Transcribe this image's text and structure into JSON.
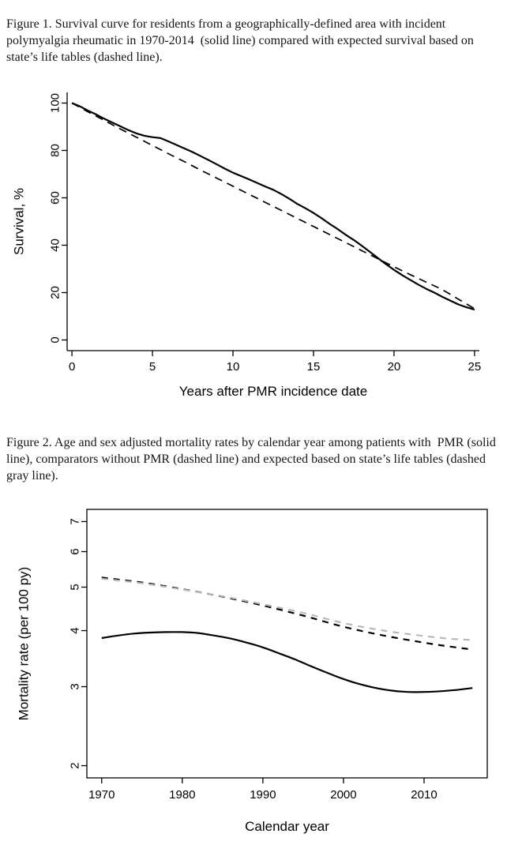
{
  "captions": {
    "figure1": "Figure 1. Survival curve for residents from a geographically-defined area with incident polymyalgia rheumatic in 1970-2014  (solid line) compared with expected survival based on state’s life tables (dashed line).",
    "figure2": "Figure 2. Age and sex adjusted mortality rates by calendar year among patients with  PMR (solid line), comparators without PMR (dashed line) and expected based on state’s life tables (dashed gray line)."
  },
  "chart_data": [
    {
      "id": "survival-curve",
      "type": "line",
      "title": "",
      "xlabel": "Years after PMR incidence date",
      "ylabel": "Survival, %",
      "xlim": [
        0,
        25
      ],
      "ylim": [
        0,
        100
      ],
      "xticks": [
        0,
        5,
        10,
        15,
        20,
        25
      ],
      "yticks": [
        0,
        20,
        40,
        60,
        80,
        100
      ],
      "yscale": "linear",
      "box": "l",
      "grid": false,
      "legend": "described-in-caption",
      "series": [
        {
          "name": "observed-pmr-cohort-solid",
          "style": "solid",
          "color": "#000000",
          "width": 2.2,
          "smooth": false,
          "points": [
            [
              0,
              100
            ],
            [
              0.5,
              98.6
            ],
            [
              1,
              96.8
            ],
            [
              1.5,
              95.2
            ],
            [
              2,
              93.4
            ],
            [
              2.5,
              91.8
            ],
            [
              3,
              90.2
            ],
            [
              3.5,
              88.6
            ],
            [
              4,
              87.2
            ],
            [
              4.5,
              86.2
            ],
            [
              5,
              85.6
            ],
            [
              5.5,
              85.2
            ],
            [
              6,
              83.8
            ],
            [
              6.5,
              82.3
            ],
            [
              7,
              80.8
            ],
            [
              7.5,
              79.3
            ],
            [
              8,
              77.6
            ],
            [
              8.5,
              75.9
            ],
            [
              9,
              74.1
            ],
            [
              9.5,
              72.3
            ],
            [
              10,
              70.6
            ],
            [
              10.5,
              69.2
            ],
            [
              11,
              67.8
            ],
            [
              11.5,
              66.3
            ],
            [
              12,
              64.8
            ],
            [
              12.5,
              63.4
            ],
            [
              13,
              61.6
            ],
            [
              13.5,
              59.6
            ],
            [
              14,
              57.4
            ],
            [
              14.5,
              55.6
            ],
            [
              15,
              53.6
            ],
            [
              15.5,
              51.4
            ],
            [
              16,
              49.0
            ],
            [
              16.5,
              46.8
            ],
            [
              17,
              44.4
            ],
            [
              17.5,
              42.2
            ],
            [
              18,
              39.8
            ],
            [
              18.5,
              37.2
            ],
            [
              19,
              34.6
            ],
            [
              19.5,
              32.0
            ],
            [
              20,
              29.6
            ],
            [
              20.5,
              27.4
            ],
            [
              21,
              25.4
            ],
            [
              21.5,
              23.4
            ],
            [
              22,
              21.6
            ],
            [
              22.5,
              20.0
            ],
            [
              23,
              18.2
            ],
            [
              23.5,
              16.6
            ],
            [
              24,
              15.0
            ],
            [
              24.5,
              13.8
            ],
            [
              25,
              12.8
            ]
          ]
        },
        {
          "name": "expected-life-tables-dashed",
          "style": "dashed",
          "color": "#000000",
          "width": 1.7,
          "smooth": true,
          "points": [
            [
              0,
              100
            ],
            [
              1,
              96.3
            ],
            [
              2,
              92.7
            ],
            [
              3,
              89.1
            ],
            [
              4,
              85.6
            ],
            [
              5,
              82.1
            ],
            [
              6,
              78.6
            ],
            [
              7,
              75.2
            ],
            [
              8,
              71.7
            ],
            [
              9,
              68.3
            ],
            [
              10,
              64.9
            ],
            [
              11,
              61.5
            ],
            [
              12,
              58.1
            ],
            [
              13,
              54.7
            ],
            [
              14,
              51.3
            ],
            [
              15,
              47.9
            ],
            [
              16,
              44.5
            ],
            [
              17,
              41.1
            ],
            [
              18,
              37.7
            ],
            [
              19,
              34.3
            ],
            [
              20,
              30.9
            ],
            [
              21,
              27.6
            ],
            [
              22,
              24.4
            ],
            [
              23,
              21.2
            ],
            [
              24,
              17.2
            ],
            [
              25,
              13.2
            ]
          ]
        }
      ]
    },
    {
      "id": "mortality-rates",
      "type": "line",
      "title": "",
      "xlabel": "Calendar year",
      "ylabel": "Mortality rate (per 100 py)",
      "xlim": [
        1970,
        2016
      ],
      "ylim": [
        2,
        7
      ],
      "xticks": [
        1970,
        1980,
        1990,
        2000,
        2010
      ],
      "yticks": [
        2,
        3,
        4,
        5,
        6,
        7
      ],
      "yscale": "log",
      "box": "o",
      "grid": false,
      "legend": "described-in-caption",
      "series": [
        {
          "name": "pmr-patients-solid",
          "style": "solid",
          "color": "#000000",
          "width": 2.2,
          "smooth": true,
          "points": [
            [
              1970,
              3.85
            ],
            [
              1972,
              3.9
            ],
            [
              1974,
              3.94
            ],
            [
              1976,
              3.96
            ],
            [
              1978,
              3.97
            ],
            [
              1980,
              3.97
            ],
            [
              1982,
              3.95
            ],
            [
              1984,
              3.9
            ],
            [
              1986,
              3.84
            ],
            [
              1988,
              3.76
            ],
            [
              1990,
              3.67
            ],
            [
              1992,
              3.56
            ],
            [
              1994,
              3.45
            ],
            [
              1996,
              3.33
            ],
            [
              1998,
              3.22
            ],
            [
              2000,
              3.12
            ],
            [
              2002,
              3.04
            ],
            [
              2004,
              2.98
            ],
            [
              2006,
              2.94
            ],
            [
              2008,
              2.92
            ],
            [
              2010,
              2.92
            ],
            [
              2012,
              2.93
            ],
            [
              2014,
              2.95
            ],
            [
              2016,
              2.98
            ]
          ]
        },
        {
          "name": "comparators-without-pmr-dashed",
          "style": "dashed",
          "color": "#000000",
          "width": 2.2,
          "smooth": true,
          "points": [
            [
              1970,
              5.25
            ],
            [
              1975,
              5.12
            ],
            [
              1980,
              4.95
            ],
            [
              1985,
              4.76
            ],
            [
              1990,
              4.55
            ],
            [
              1995,
              4.32
            ],
            [
              2000,
              4.08
            ],
            [
              2005,
              3.9
            ],
            [
              2010,
              3.76
            ],
            [
              2013,
              3.69
            ],
            [
              2016,
              3.63
            ]
          ]
        },
        {
          "name": "expected-life-tables-dashed-gray",
          "style": "dashed",
          "color": "#b8b8b8",
          "width": 2.2,
          "smooth": true,
          "points": [
            [
              1970,
              5.22
            ],
            [
              1975,
              5.1
            ],
            [
              1980,
              4.94
            ],
            [
              1985,
              4.77
            ],
            [
              1990,
              4.58
            ],
            [
              1995,
              4.38
            ],
            [
              2000,
              4.16
            ],
            [
              2005,
              4.0
            ],
            [
              2010,
              3.89
            ],
            [
              2013,
              3.84
            ],
            [
              2016,
              3.81
            ]
          ]
        }
      ]
    }
  ]
}
